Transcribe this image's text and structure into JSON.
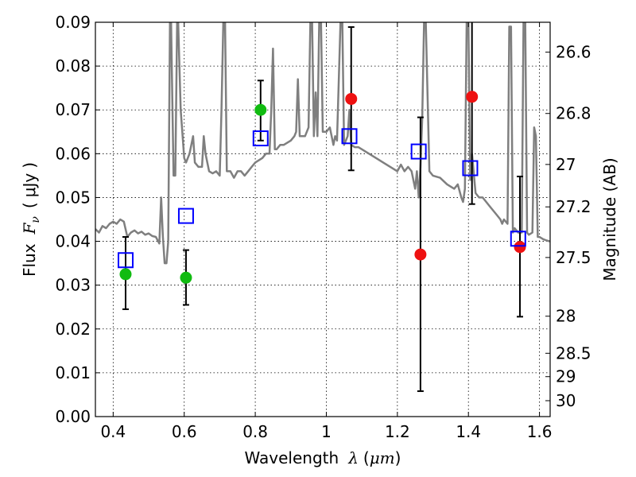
{
  "chart_data": {
    "type": "scatter",
    "xlabel_text": "Wavelength",
    "xlabel_math": "λ",
    "xlabel_unit_open": "(",
    "xlabel_unit": "μm",
    "xlabel_unit_close": ")",
    "ylabel_text": "Flux",
    "ylabel_math_F": "F",
    "ylabel_math_sub": "ν",
    "ylabel_unit_open": "(",
    "ylabel_unit": "μJy",
    "ylabel_unit_close": ")",
    "y2label": "Magnitude (AB)",
    "xlim": [
      0.35,
      1.63
    ],
    "ylim": [
      0.0,
      0.09
    ],
    "grid": true,
    "x_ticks": [
      {
        "value": 0.4,
        "label": "0.4"
      },
      {
        "value": 0.6,
        "label": "0.6"
      },
      {
        "value": 0.8,
        "label": "0.8"
      },
      {
        "value": 1.0,
        "label": "1"
      },
      {
        "value": 1.2,
        "label": "1.2"
      },
      {
        "value": 1.4,
        "label": "1.4"
      },
      {
        "value": 1.6,
        "label": "1.6"
      }
    ],
    "y_ticks": [
      {
        "value": 0.0,
        "label": "0.00"
      },
      {
        "value": 0.01,
        "label": "0.01"
      },
      {
        "value": 0.02,
        "label": "0.02"
      },
      {
        "value": 0.03,
        "label": "0.03"
      },
      {
        "value": 0.04,
        "label": "0.04"
      },
      {
        "value": 0.05,
        "label": "0.05"
      },
      {
        "value": 0.06,
        "label": "0.06"
      },
      {
        "value": 0.07,
        "label": "0.07"
      },
      {
        "value": 0.08,
        "label": "0.08"
      },
      {
        "value": 0.09,
        "label": "0.09"
      }
    ],
    "mag_ticks": [
      {
        "mag": 26.6,
        "label": "26.6"
      },
      {
        "mag": 26.8,
        "label": "26.8"
      },
      {
        "mag": 27.0,
        "label": "27"
      },
      {
        "mag": 27.2,
        "label": "27.2"
      },
      {
        "mag": 27.5,
        "label": "27.5"
      },
      {
        "mag": 28.0,
        "label": "28"
      },
      {
        "mag": 28.5,
        "label": "28.5"
      },
      {
        "mag": 29.0,
        "label": "29"
      },
      {
        "mag": 30.0,
        "label": "30"
      }
    ],
    "colors": {
      "model": "#7f7f7f",
      "green": "#11bb11",
      "red": "#ee1111",
      "square": "#0000ff",
      "errorbar": "#000000"
    },
    "series": [
      {
        "marker": "circle",
        "color": "#11bb11",
        "points": [
          {
            "x": 0.435,
            "y": 0.0325,
            "ylo": 0.0245,
            "yhi": 0.041
          },
          {
            "x": 0.605,
            "y": 0.0317,
            "ylo": 0.0255,
            "yhi": 0.038
          },
          {
            "x": 0.815,
            "y": 0.07,
            "ylo": 0.063,
            "yhi": 0.0767
          }
        ]
      },
      {
        "marker": "circle",
        "color": "#ee1111",
        "points": [
          {
            "x": 1.07,
            "y": 0.0725,
            "ylo": 0.0562,
            "yhi": 0.0889
          },
          {
            "x": 1.265,
            "y": 0.037,
            "ylo": 0.0058,
            "yhi": 0.0683
          },
          {
            "x": 1.41,
            "y": 0.073,
            "ylo": 0.0485,
            "yhi": 0.093
          },
          {
            "x": 1.545,
            "y": 0.0387,
            "ylo": 0.0228,
            "yhi": 0.0548
          }
        ]
      },
      {
        "marker": "square",
        "color": "#0000ff",
        "points": [
          {
            "x": 0.435,
            "y": 0.0357
          },
          {
            "x": 0.605,
            "y": 0.0458
          },
          {
            "x": 0.815,
            "y": 0.0635
          },
          {
            "x": 1.065,
            "y": 0.064
          },
          {
            "x": 1.26,
            "y": 0.0605
          },
          {
            "x": 1.405,
            "y": 0.0567
          },
          {
            "x": 1.54,
            "y": 0.0406
          }
        ]
      }
    ],
    "model_spectrum": [
      [
        0.35,
        0.0428
      ],
      [
        0.36,
        0.042
      ],
      [
        0.37,
        0.0435
      ],
      [
        0.38,
        0.043
      ],
      [
        0.39,
        0.044
      ],
      [
        0.4,
        0.0445
      ],
      [
        0.41,
        0.044
      ],
      [
        0.42,
        0.045
      ],
      [
        0.43,
        0.0445
      ],
      [
        0.44,
        0.041
      ],
      [
        0.45,
        0.042
      ],
      [
        0.46,
        0.0425
      ],
      [
        0.47,
        0.0418
      ],
      [
        0.48,
        0.0422
      ],
      [
        0.49,
        0.0415
      ],
      [
        0.5,
        0.0418
      ],
      [
        0.51,
        0.0412
      ],
      [
        0.52,
        0.041
      ],
      [
        0.53,
        0.0395
      ],
      [
        0.535,
        0.05
      ],
      [
        0.54,
        0.041
      ],
      [
        0.545,
        0.035
      ],
      [
        0.55,
        0.035
      ],
      [
        0.555,
        0.04
      ],
      [
        0.56,
        0.09
      ],
      [
        0.563,
        0.09
      ],
      [
        0.57,
        0.055
      ],
      [
        0.575,
        0.055
      ],
      [
        0.58,
        0.09
      ],
      [
        0.583,
        0.09
      ],
      [
        0.59,
        0.07
      ],
      [
        0.6,
        0.059
      ],
      [
        0.605,
        0.058
      ],
      [
        0.615,
        0.06
      ],
      [
        0.625,
        0.064
      ],
      [
        0.63,
        0.058
      ],
      [
        0.64,
        0.057
      ],
      [
        0.65,
        0.057
      ],
      [
        0.655,
        0.064
      ],
      [
        0.66,
        0.06
      ],
      [
        0.67,
        0.056
      ],
      [
        0.68,
        0.0555
      ],
      [
        0.69,
        0.056
      ],
      [
        0.7,
        0.055
      ],
      [
        0.705,
        0.07
      ],
      [
        0.71,
        0.09
      ],
      [
        0.715,
        0.09
      ],
      [
        0.72,
        0.056
      ],
      [
        0.73,
        0.056
      ],
      [
        0.74,
        0.0545
      ],
      [
        0.75,
        0.056
      ],
      [
        0.76,
        0.056
      ],
      [
        0.77,
        0.055
      ],
      [
        0.78,
        0.056
      ],
      [
        0.79,
        0.057
      ],
      [
        0.8,
        0.058
      ],
      [
        0.81,
        0.0585
      ],
      [
        0.82,
        0.059
      ],
      [
        0.83,
        0.06
      ],
      [
        0.84,
        0.06
      ],
      [
        0.845,
        0.07
      ],
      [
        0.85,
        0.084
      ],
      [
        0.855,
        0.061
      ],
      [
        0.86,
        0.061
      ],
      [
        0.87,
        0.062
      ],
      [
        0.88,
        0.062
      ],
      [
        0.89,
        0.0625
      ],
      [
        0.9,
        0.063
      ],
      [
        0.91,
        0.064
      ],
      [
        0.915,
        0.065
      ],
      [
        0.92,
        0.077
      ],
      [
        0.925,
        0.064
      ],
      [
        0.93,
        0.064
      ],
      [
        0.94,
        0.064
      ],
      [
        0.95,
        0.066
      ],
      [
        0.955,
        0.09
      ],
      [
        0.96,
        0.09
      ],
      [
        0.965,
        0.064
      ],
      [
        0.97,
        0.074
      ],
      [
        0.975,
        0.064
      ],
      [
        0.98,
        0.09
      ],
      [
        0.985,
        0.09
      ],
      [
        0.99,
        0.065
      ],
      [
        1.0,
        0.065
      ],
      [
        1.01,
        0.066
      ],
      [
        1.02,
        0.062
      ],
      [
        1.025,
        0.064
      ],
      [
        1.03,
        0.063
      ],
      [
        1.04,
        0.09
      ],
      [
        1.045,
        0.09
      ],
      [
        1.05,
        0.062
      ],
      [
        1.06,
        0.064
      ],
      [
        1.065,
        0.07
      ],
      [
        1.07,
        0.062
      ],
      [
        1.08,
        0.0615
      ],
      [
        1.09,
        0.0615
      ],
      [
        1.1,
        0.061
      ],
      [
        1.12,
        0.06
      ],
      [
        1.14,
        0.059
      ],
      [
        1.16,
        0.058
      ],
      [
        1.18,
        0.057
      ],
      [
        1.2,
        0.056
      ],
      [
        1.21,
        0.0575
      ],
      [
        1.22,
        0.056
      ],
      [
        1.23,
        0.057
      ],
      [
        1.24,
        0.056
      ],
      [
        1.25,
        0.052
      ],
      [
        1.255,
        0.056
      ],
      [
        1.26,
        0.05
      ],
      [
        1.265,
        0.057
      ],
      [
        1.27,
        0.068
      ],
      [
        1.275,
        0.09
      ],
      [
        1.28,
        0.09
      ],
      [
        1.29,
        0.056
      ],
      [
        1.3,
        0.055
      ],
      [
        1.32,
        0.0545
      ],
      [
        1.34,
        0.053
      ],
      [
        1.36,
        0.052
      ],
      [
        1.37,
        0.053
      ],
      [
        1.38,
        0.05
      ],
      [
        1.385,
        0.049
      ],
      [
        1.39,
        0.052
      ],
      [
        1.395,
        0.09
      ],
      [
        1.4,
        0.09
      ],
      [
        1.405,
        0.054
      ],
      [
        1.41,
        0.06
      ],
      [
        1.42,
        0.051
      ],
      [
        1.43,
        0.05
      ],
      [
        1.44,
        0.05
      ],
      [
        1.45,
        0.049
      ],
      [
        1.46,
        0.048
      ],
      [
        1.47,
        0.047
      ],
      [
        1.48,
        0.046
      ],
      [
        1.49,
        0.045
      ],
      [
        1.495,
        0.044
      ],
      [
        1.5,
        0.045
      ],
      [
        1.51,
        0.044
      ],
      [
        1.515,
        0.089
      ],
      [
        1.52,
        0.089
      ],
      [
        1.525,
        0.042
      ],
      [
        1.53,
        0.043
      ],
      [
        1.54,
        0.042
      ],
      [
        1.55,
        0.042
      ],
      [
        1.555,
        0.09
      ],
      [
        1.56,
        0.09
      ],
      [
        1.565,
        0.042
      ],
      [
        1.57,
        0.0415
      ],
      [
        1.58,
        0.042
      ],
      [
        1.585,
        0.066
      ],
      [
        1.59,
        0.064
      ],
      [
        1.595,
        0.041
      ],
      [
        1.6,
        0.041
      ],
      [
        1.61,
        0.0405
      ],
      [
        1.62,
        0.0402
      ],
      [
        1.63,
        0.04
      ]
    ]
  }
}
